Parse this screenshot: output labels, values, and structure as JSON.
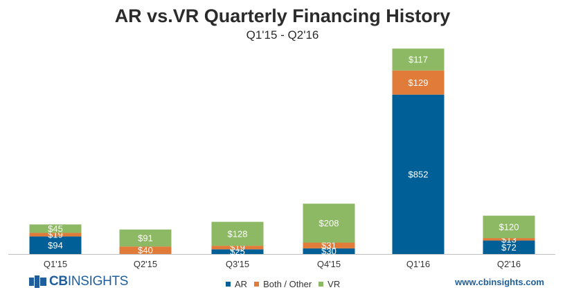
{
  "header": {
    "title": "AR vs.VR Quarterly Financing History",
    "subtitle": "Q1'15 - Q2'16"
  },
  "footer": {
    "brand_prefix": "CB",
    "brand_name": "INSIGHTS",
    "website": "www.cbinsights.com"
  },
  "chart_data": {
    "type": "bar",
    "stacked": true,
    "title": "AR vs.VR Quarterly Financing History",
    "subtitle": "Q1'15 - Q2'16",
    "xlabel": "",
    "ylabel": "",
    "categories": [
      "Q1'15",
      "Q2'15",
      "Q3'15",
      "Q4'15",
      "Q1'16",
      "Q2'16"
    ],
    "series": [
      {
        "name": "AR",
        "color": "#005F96",
        "values": [
          94,
          0,
          25,
          30,
          852,
          72
        ],
        "labels": [
          "$94",
          "",
          "$25",
          "$30",
          "$852",
          "$72"
        ]
      },
      {
        "name": "Both / Other",
        "color": "#E07B39",
        "values": [
          19,
          40,
          19,
          31,
          129,
          13
        ],
        "labels": [
          "$19",
          "$40",
          "$19",
          "$31",
          "$129",
          "$13"
        ]
      },
      {
        "name": "VR",
        "color": "#8DB964",
        "values": [
          45,
          91,
          128,
          208,
          117,
          120
        ],
        "labels": [
          "$45",
          "$91",
          "$128",
          "$208",
          "$117",
          "$120"
        ]
      }
    ],
    "legend_position": "bottom-center",
    "grid": false
  }
}
